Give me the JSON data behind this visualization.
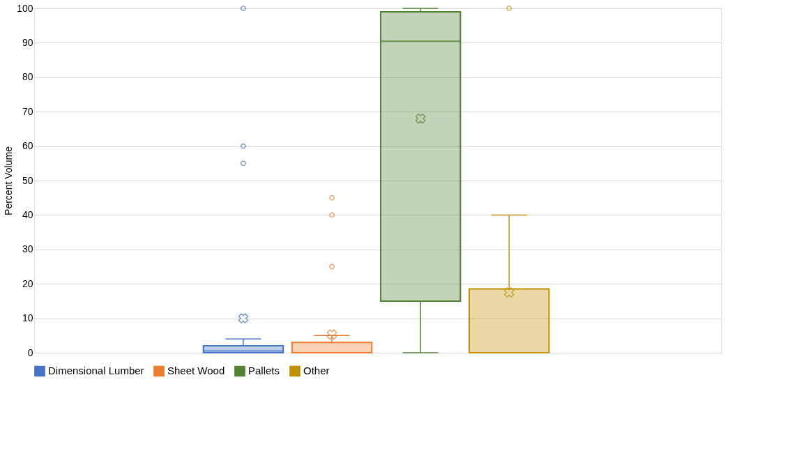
{
  "chart_data": {
    "type": "box",
    "ylabel": "Percent Volume",
    "categories": [
      null
    ],
    "ylim": [
      0,
      100
    ],
    "yticks": [
      0,
      10,
      20,
      30,
      40,
      50,
      60,
      70,
      80,
      90,
      100
    ],
    "grid": "y",
    "legend": "bottom",
    "series": [
      {
        "name": "Dimensional Lumber",
        "color": "#4472c4",
        "boxes": [
          {
            "low": 0,
            "q1": 0,
            "median": 0.5,
            "q3": 2,
            "high": 4,
            "mean": 10,
            "outliers": [
              55,
              60,
              100
            ]
          }
        ]
      },
      {
        "name": "Sheet Wood",
        "color": "#ed7d31",
        "boxes": [
          {
            "low": 0,
            "q1": 0,
            "median": 0,
            "q3": 3,
            "high": 5,
            "mean": 5.3,
            "outliers": [
              25,
              40,
              45
            ]
          }
        ]
      },
      {
        "name": "Pallets",
        "color": "#548235",
        "boxes": [
          {
            "low": 0,
            "q1": 15,
            "median": 90.5,
            "q3": 99,
            "high": 100,
            "mean": 68
          }
        ]
      },
      {
        "name": "Other",
        "color": "#bf9000",
        "boxes": [
          {
            "low": 0,
            "q1": 0,
            "median": 0,
            "q3": 18.5,
            "high": 40,
            "mean": 17.5,
            "outliers": [
              100
            ]
          }
        ]
      }
    ]
  }
}
